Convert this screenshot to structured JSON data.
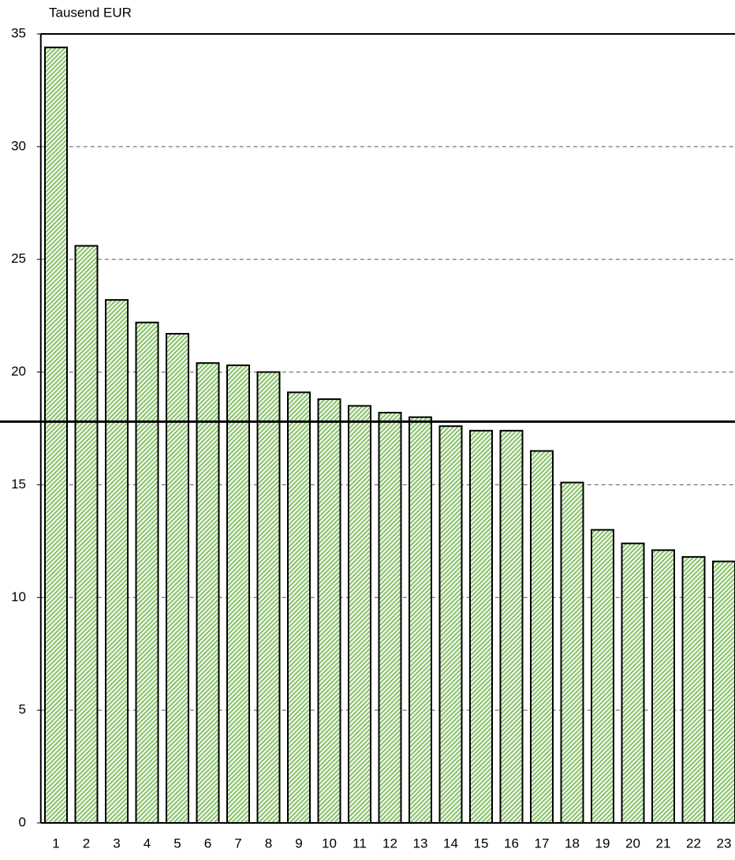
{
  "chart_data": {
    "type": "bar",
    "y_label": "Tausend EUR",
    "categories": [
      "1",
      "2",
      "3",
      "4",
      "5",
      "6",
      "7",
      "8",
      "9",
      "10",
      "11",
      "12",
      "13",
      "14",
      "15",
      "16",
      "17",
      "18",
      "19",
      "20",
      "21",
      "22",
      "23"
    ],
    "values": [
      34.4,
      25.6,
      23.2,
      22.2,
      21.7,
      20.4,
      20.3,
      20.0,
      19.1,
      18.8,
      18.5,
      18.2,
      18.0,
      17.6,
      17.4,
      17.4,
      16.5,
      15.1,
      13.0,
      12.4,
      12.1,
      11.8,
      11.6
    ],
    "color": "#8cc36e",
    "reference_line": 17.8,
    "ylim": [
      0,
      35
    ],
    "yticks": [
      0,
      5,
      10,
      15,
      20,
      25,
      30,
      35
    ],
    "grid": true
  }
}
